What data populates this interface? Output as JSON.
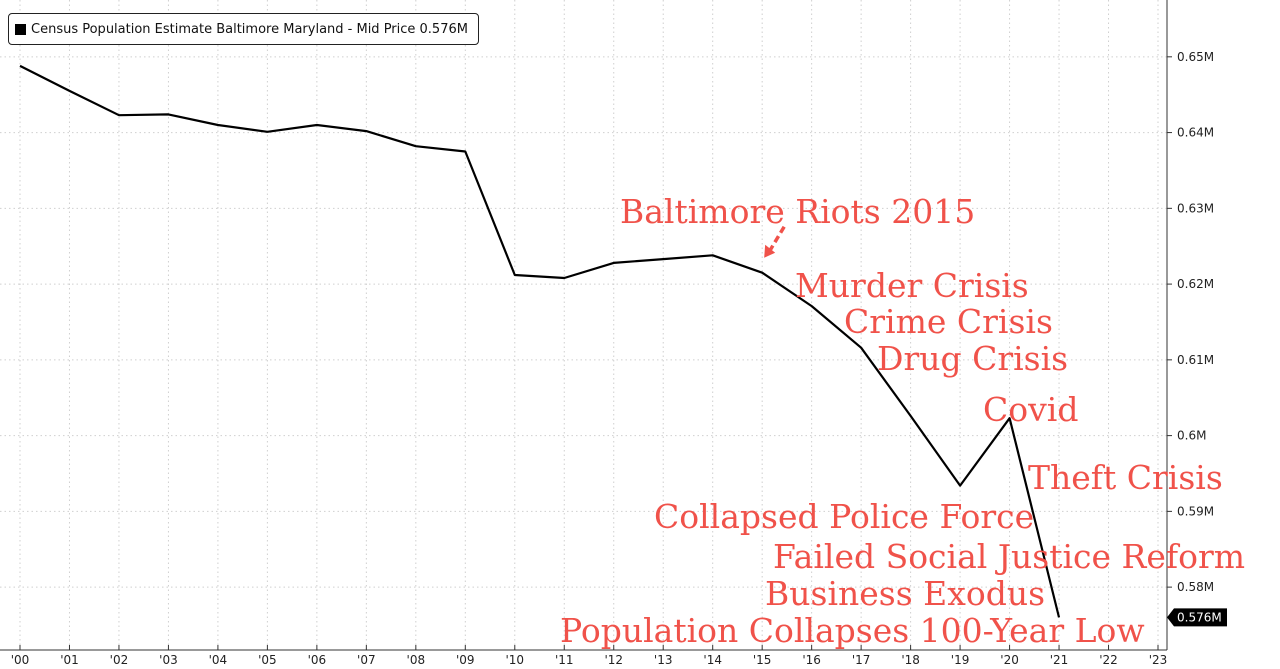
{
  "chart_data": {
    "type": "line",
    "title": "Census Population Estimate Baltimore Maryland - Mid Price 0.576M",
    "series": [
      {
        "name": "Census Population Estimate Baltimore Maryland - Mid Price",
        "color": "#000000",
        "x": [
          2000,
          2001,
          2002,
          2003,
          2004,
          2005,
          2006,
          2007,
          2008,
          2009,
          2010,
          2011,
          2012,
          2013,
          2014,
          2015,
          2016,
          2017,
          2018,
          2019,
          2020,
          2021
        ],
        "values": [
          0.6488,
          0.6455,
          0.6423,
          0.6424,
          0.641,
          0.6401,
          0.641,
          0.6402,
          0.6382,
          0.6375,
          0.6212,
          0.6208,
          0.6228,
          0.6233,
          0.6238,
          0.6215,
          0.6171,
          0.6116,
          0.6026,
          0.5934,
          0.6023,
          0.576
        ]
      }
    ],
    "x_tick_labels": [
      "'00",
      "'01",
      "'02",
      "'03",
      "'04",
      "'05",
      "'06",
      "'07",
      "'08",
      "'09",
      "'10",
      "'11",
      "'12",
      "'13",
      "'14",
      "'15",
      "'16",
      "'17",
      "'18",
      "'19",
      "'20",
      "'21",
      "'22",
      "'23"
    ],
    "y_ticks": [
      0.58,
      0.59,
      0.6,
      0.61,
      0.62,
      0.63,
      0.64,
      0.65
    ],
    "y_tick_labels": [
      "0.58M",
      "0.59M",
      "0.6M",
      "0.61M",
      "0.62M",
      "0.63M",
      "0.64M",
      "0.65M"
    ],
    "xlim": [
      2000,
      2023
    ],
    "ylim": [
      0.5717,
      0.6575
    ],
    "grid": true,
    "legend_placement": "top-left",
    "last_value_label": "0.576M",
    "annotation_color": "#f0524a",
    "annotations": [
      {
        "text": "Baltimore Riots 2015",
        "x": 2015,
        "y": 0.6215
      },
      {
        "text": "Murder Crisis"
      },
      {
        "text": "Crime Crisis"
      },
      {
        "text": "Drug Crisis"
      },
      {
        "text": "Covid"
      },
      {
        "text": "Theft Crisis"
      },
      {
        "text": "Collapsed Police Force"
      },
      {
        "text": "Failed Social Justice Reform"
      },
      {
        "text": "Business Exodus"
      },
      {
        "text": "Population Collapses 100-Year Low"
      }
    ]
  }
}
